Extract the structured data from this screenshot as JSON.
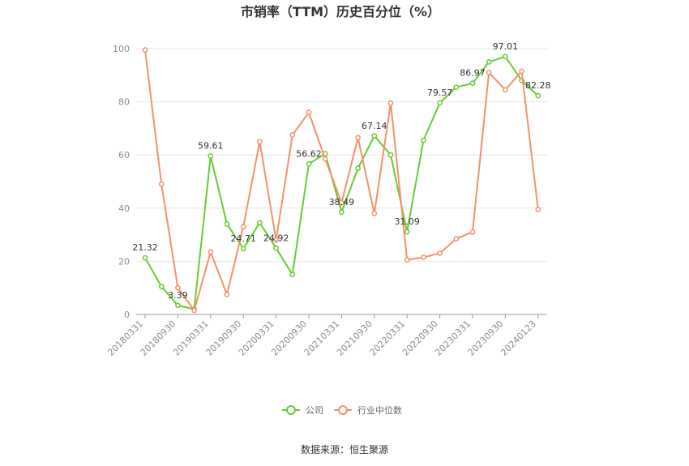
{
  "chart_data": {
    "type": "line",
    "title": "市销率（TTM）历史百分位（%）",
    "ylim": [
      0,
      100
    ],
    "y_ticks": [
      0,
      20,
      40,
      60,
      80,
      100
    ],
    "grid": true,
    "legend_placement": "bottom-center",
    "x_tick_labels": [
      "20180331",
      "20180930",
      "20190331",
      "20190930",
      "20200331",
      "20200930",
      "20210331",
      "20210930",
      "20220331",
      "20220930",
      "20230331",
      "20230930",
      "20240123"
    ],
    "x": [
      "20180331",
      "20180630",
      "20180930",
      "20181231",
      "20190331",
      "20190630",
      "20190930",
      "20191231",
      "20200331",
      "20200630",
      "20200930",
      "20201231",
      "20210331",
      "20210630",
      "20210930",
      "20211231",
      "20220331",
      "20220630",
      "20220930",
      "20221231",
      "20230331",
      "20230630",
      "20230930",
      "20231231",
      "20240123"
    ],
    "series": [
      {
        "name": "公司",
        "color": "#66cc33",
        "values": [
          21.32,
          10.5,
          3.39,
          2.0,
          59.61,
          34.0,
          24.71,
          34.5,
          24.92,
          15.0,
          56.62,
          60.5,
          38.49,
          55.0,
          67.14,
          60.0,
          31.09,
          65.5,
          79.57,
          85.5,
          86.97,
          95.0,
          97.01,
          88.0,
          82.28
        ],
        "labels": {
          "0": "21.32",
          "2": "3.39",
          "4": "59.61",
          "6": "24.71",
          "8": "24.92",
          "10": "56.62",
          "12": "38.49",
          "14": "67.14",
          "16": "31.09",
          "18": "79.57",
          "20": "86.97",
          "22": "97.01",
          "24": "82.28"
        }
      },
      {
        "name": "行业中位数",
        "color": "#f4916a",
        "values": [
          99.5,
          49.0,
          10.0,
          1.5,
          23.5,
          7.5,
          33.0,
          65.0,
          28.0,
          67.5,
          76.0,
          58.5,
          42.0,
          66.5,
          38.0,
          79.5,
          20.5,
          21.5,
          23.0,
          28.5,
          31.0,
          91.0,
          84.5,
          91.5,
          39.5
        ]
      }
    ],
    "source": "数据来源：恒生聚源"
  }
}
